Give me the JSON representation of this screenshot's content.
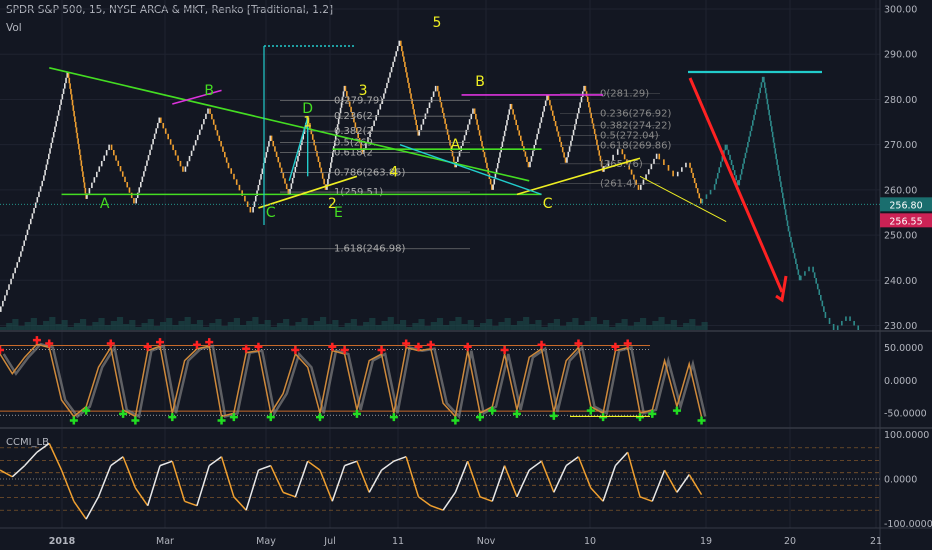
{
  "header": {
    "title": "SPDR S&P 500, 15, NYSE ARCA & MKT, Renko [Traditional, 1.2]",
    "vol_label": "Vol"
  },
  "colors": {
    "background": "#131722",
    "grid": "#1f2330",
    "up_brick": "#e0e0e0",
    "down_brick": "#f0a030",
    "projection": "#2e8b8b",
    "pattern_green": "#44dd22",
    "pattern_yellow": "#eeee22",
    "pattern_magenta": "#dd33dd",
    "arrow_red": "#ff2222",
    "target_cyan": "#22cccc",
    "last_price_label": "#1a6e6e",
    "prev_price_label": "#cc2255",
    "fib_gray": "#888888"
  },
  "chart_data": [
    {
      "type": "line",
      "subtype": "renko",
      "title": "SPDR S&P 500, 15, NYSE ARCA & MKT, Renko [Traditional, 1.2]",
      "ylim": [
        229,
        302
      ],
      "x_ticks": [
        "2018",
        "Mar",
        "May",
        "Jul",
        "11",
        "Nov",
        "10",
        "19",
        "20",
        "21"
      ],
      "y_ticks": [
        "300.00",
        "290.00",
        "280.00",
        "270.00",
        "260.00",
        "250.00",
        "240.00",
        "230.00"
      ],
      "grid": true,
      "price_labels": {
        "last": "256.80",
        "previous": "256.55"
      },
      "series": [
        {
          "role": "price",
          "x": [
            0,
            3,
            7,
            11,
            14,
            18,
            22,
            26,
            30,
            34,
            37,
            41,
            44,
            47,
            50,
            53,
            56,
            59,
            62,
            65,
            68,
            71,
            74,
            77,
            80,
            83,
            86,
            89,
            92,
            95,
            98,
            101,
            104,
            107,
            110,
            112,
            114
          ],
          "values": [
            233,
            244,
            262,
            286,
            258,
            270,
            257,
            276,
            264,
            278,
            266,
            255,
            272,
            259,
            276,
            260,
            283,
            268,
            279,
            293,
            272,
            283,
            265,
            278,
            260,
            279,
            265,
            281,
            266,
            283,
            264,
            269,
            260,
            268,
            263,
            266,
            257
          ]
        },
        {
          "role": "projection",
          "x": [
            114,
            116,
            118,
            120,
            122,
            124,
            126,
            128,
            130,
            132,
            134,
            136,
            138,
            140
          ],
          "values": [
            257,
            260,
            270,
            261,
            273,
            285,
            268,
            252,
            240,
            243,
            233,
            229,
            232,
            229
          ]
        }
      ],
      "annotations": [
        {
          "text": "A",
          "color": "green",
          "x": 17,
          "y": 256
        },
        {
          "text": "B",
          "color": "green",
          "x": 34,
          "y": 281
        },
        {
          "text": "C",
          "color": "green",
          "x": 44,
          "y": 254
        },
        {
          "text": "D",
          "color": "green",
          "x": 50,
          "y": 277
        },
        {
          "text": "E",
          "color": "green",
          "x": 55,
          "y": 254
        },
        {
          "text": "1",
          "color": "yellow",
          "x": 50,
          "y": 274
        },
        {
          "text": "2",
          "color": "yellow",
          "x": 54,
          "y": 256
        },
        {
          "text": "3",
          "color": "yellow",
          "x": 59,
          "y": 281
        },
        {
          "text": "4",
          "color": "yellow",
          "x": 64,
          "y": 263
        },
        {
          "text": "5",
          "color": "yellow",
          "x": 71,
          "y": 296
        },
        {
          "text": "A",
          "color": "yellow",
          "x": 74,
          "y": 269
        },
        {
          "text": "B",
          "color": "yellow",
          "x": 78,
          "y": 283
        },
        {
          "text": "C",
          "color": "yellow",
          "x": 89,
          "y": 256
        }
      ],
      "fib_upper": [
        {
          "label": "0(279.79)",
          "value": 279.79
        },
        {
          "label": "0.236(2",
          "value": 276.3
        },
        {
          "label": "0.382(2",
          "value": 273.0
        },
        {
          "label": "0.5(269.",
          "value": 270.5
        },
        {
          "label": "0.618(2",
          "value": 268.3
        },
        {
          "label": "0.786(263.85)",
          "value": 263.85
        },
        {
          "label": "1(259.51)",
          "value": 259.51
        },
        {
          "label": "1.618(246.98)",
          "value": 246.98
        }
      ],
      "fib_right": [
        {
          "label": "0(281.29)",
          "value": 281.29
        },
        {
          "label": "0.236(276.92)",
          "value": 276.92
        },
        {
          "label": "0.382(274.22)",
          "value": 274.22
        },
        {
          "label": "0.5(272.04)",
          "value": 272.04
        },
        {
          "label": "0.618(269.86)",
          "value": 269.86
        },
        {
          "label": "(265.76)",
          "value": 265.76
        },
        {
          "label": "(261.4)",
          "value": 261.4
        }
      ]
    },
    {
      "type": "line",
      "title": "",
      "ylim": [
        -68,
        72
      ],
      "y_ticks": [
        "50.0000",
        "0.0000",
        "-50.0000"
      ],
      "series": [
        {
          "role": "oscillator",
          "x": [
            0,
            2,
            4,
            6,
            8,
            10,
            12,
            14,
            16,
            18,
            20,
            22,
            24,
            26,
            28,
            30,
            32,
            34,
            36,
            38,
            40,
            42,
            44,
            46,
            48,
            50,
            52,
            54,
            56,
            58,
            60,
            62,
            64,
            66,
            68,
            70,
            72,
            74,
            76,
            78,
            80,
            82,
            84,
            86,
            88,
            90,
            92,
            94,
            96,
            98,
            100,
            102,
            104,
            106,
            108,
            110,
            112,
            114
          ],
          "values": [
            40,
            10,
            35,
            55,
            50,
            -30,
            -55,
            -40,
            20,
            50,
            -45,
            -55,
            45,
            52,
            -50,
            30,
            48,
            52,
            -55,
            -50,
            42,
            45,
            -50,
            -20,
            40,
            20,
            -50,
            45,
            40,
            -45,
            30,
            40,
            -50,
            50,
            45,
            48,
            -35,
            -55,
            45,
            -50,
            -40,
            40,
            -45,
            35,
            48,
            -48,
            30,
            50,
            -40,
            -50,
            45,
            50,
            -50,
            -45,
            30,
            -40,
            25,
            -55
          ]
        }
      ]
    },
    {
      "type": "line",
      "title": "CCMI_LB",
      "ylim": [
        -110,
        110
      ],
      "y_ticks": [
        "100.0000",
        "0.0000",
        "-100.0000"
      ],
      "series": [
        {
          "role": "ccmi",
          "x": [
            0,
            2,
            4,
            6,
            8,
            10,
            12,
            14,
            16,
            18,
            20,
            22,
            24,
            26,
            28,
            30,
            32,
            34,
            36,
            38,
            40,
            42,
            44,
            46,
            48,
            50,
            52,
            54,
            56,
            58,
            60,
            62,
            64,
            66,
            68,
            70,
            72,
            74,
            76,
            78,
            80,
            82,
            84,
            86,
            88,
            90,
            92,
            94,
            96,
            98,
            100,
            102,
            104,
            106,
            108,
            110,
            112,
            114
          ],
          "values": [
            20,
            5,
            30,
            60,
            80,
            20,
            -50,
            -90,
            -40,
            30,
            50,
            -20,
            -60,
            30,
            40,
            -50,
            -60,
            30,
            50,
            -40,
            -70,
            20,
            30,
            -30,
            -40,
            40,
            20,
            -50,
            30,
            40,
            -30,
            20,
            40,
            50,
            -40,
            -60,
            -70,
            -30,
            40,
            -40,
            -50,
            30,
            -40,
            20,
            40,
            -30,
            30,
            50,
            -20,
            -50,
            30,
            60,
            -40,
            -50,
            20,
            -30,
            10,
            -35
          ]
        }
      ]
    }
  ]
}
